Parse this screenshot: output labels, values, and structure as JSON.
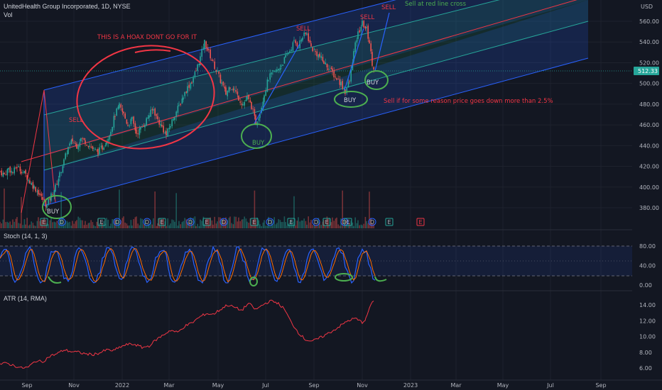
{
  "header": {
    "symbol_line": "UnitedHealth Group Incorporated, 1D, NYSE",
    "vol_label": "Vol"
  },
  "price_axis": {
    "currency": "USD",
    "ticks": [
      "560.00",
      "540.00",
      "520.00",
      "500.00",
      "480.00",
      "460.00",
      "440.00",
      "420.00",
      "400.00",
      "380.00"
    ],
    "last_price": "512.33"
  },
  "stoch": {
    "label": "Stoch (14, 1, 3)",
    "ticks": [
      "80.00",
      "40.00",
      "0.00"
    ]
  },
  "atr": {
    "label": "ATR (14, RMA)",
    "ticks": [
      "14.00",
      "12.00",
      "10.00",
      "8.00",
      "6.00"
    ]
  },
  "time_axis": [
    "Sep",
    "Nov",
    "2022",
    "Mar",
    "May",
    "Jul",
    "Sep",
    "Nov",
    "2023",
    "Mar",
    "May",
    "Jul",
    "Sep"
  ],
  "annotations": {
    "hoax": "THIS IS A HOAX DONT GO FOR IT",
    "sell_1": "SELL",
    "sell_2": "SELL",
    "sell_3": "SELL",
    "sell_4": "SELL",
    "sell_red_line": "Sell at red line cross",
    "buy_1": "BUY",
    "buy_2": "BUY",
    "buy_3": "BUY",
    "buy_4": "BUY",
    "warning": "Sell if for some reason price goes down more than 2.5%"
  },
  "events": [
    "E",
    "D",
    "E",
    "D",
    "D",
    "E",
    "D",
    "E",
    "D",
    "E",
    "D",
    "E",
    "D",
    "E",
    "D",
    "E",
    "D",
    "E"
  ],
  "colors": {
    "background": "#131722",
    "up": "#26a69a",
    "down": "#ef5350",
    "channel_blue": "#2962ff",
    "channel_green": "#1e8a5e",
    "annotation_red": "#f23645",
    "annotation_green": "#4caf50",
    "stoch_k": "#2962ff",
    "stoch_d": "#ff6d00",
    "atr_line": "#f23645"
  },
  "chart_data": {
    "type": "candlestick",
    "price_series_close": [
      [
        0,
        415
      ],
      [
        6,
        412
      ],
      [
        12,
        418
      ],
      [
        18,
        414
      ],
      [
        24,
        420
      ],
      [
        30,
        416
      ],
      [
        36,
        412
      ],
      [
        42,
        405
      ],
      [
        48,
        400
      ],
      [
        54,
        395
      ],
      [
        60,
        388
      ],
      [
        66,
        382
      ],
      [
        72,
        392
      ],
      [
        78,
        400
      ],
      [
        84,
        412
      ],
      [
        90,
        425
      ],
      [
        96,
        438
      ],
      [
        102,
        445
      ],
      [
        108,
        440
      ],
      [
        114,
        447
      ],
      [
        120,
        444
      ],
      [
        126,
        440
      ],
      [
        132,
        436
      ],
      [
        138,
        434
      ],
      [
        144,
        438
      ],
      [
        150,
        445
      ],
      [
        156,
        455
      ],
      [
        162,
        470
      ],
      [
        168,
        478
      ],
      [
        174,
        470
      ],
      [
        180,
        460
      ],
      [
        186,
        465
      ],
      [
        192,
        452
      ],
      [
        198,
        456
      ],
      [
        204,
        462
      ],
      [
        210,
        470
      ],
      [
        216,
        475
      ],
      [
        222,
        465
      ],
      [
        228,
        458
      ],
      [
        234,
        450
      ],
      [
        240,
        460
      ],
      [
        246,
        470
      ],
      [
        252,
        478
      ],
      [
        258,
        488
      ],
      [
        264,
        496
      ],
      [
        270,
        502
      ],
      [
        276,
        512
      ],
      [
        282,
        525
      ],
      [
        288,
        540
      ],
      [
        294,
        530
      ],
      [
        300,
        520
      ],
      [
        306,
        510
      ],
      [
        312,
        500
      ],
      [
        318,
        490
      ],
      [
        324,
        498
      ],
      [
        330,
        494
      ],
      [
        336,
        486
      ],
      [
        342,
        480
      ],
      [
        348,
        486
      ],
      [
        354,
        478
      ],
      [
        360,
        462
      ],
      [
        366,
        472
      ],
      [
        372,
        490
      ],
      [
        378,
        505
      ],
      [
        384,
        510
      ],
      [
        390,
        512
      ],
      [
        396,
        518
      ],
      [
        402,
        525
      ],
      [
        408,
        532
      ],
      [
        414,
        540
      ],
      [
        420,
        537
      ],
      [
        426,
        545
      ],
      [
        432,
        548
      ],
      [
        438,
        535
      ],
      [
        444,
        530
      ],
      [
        450,
        526
      ],
      [
        456,
        520
      ],
      [
        462,
        516
      ],
      [
        468,
        510
      ],
      [
        474,
        505
      ],
      [
        480,
        500
      ],
      [
        486,
        492
      ],
      [
        492,
        502
      ],
      [
        498,
        530
      ],
      [
        504,
        548
      ],
      [
        510,
        558
      ],
      [
        516,
        552
      ],
      [
        520,
        540
      ],
      [
        524,
        520
      ],
      [
        528,
        512
      ]
    ],
    "stoch_k_range": [
      0,
      100
    ],
    "stoch_bands": [
      20,
      50,
      80
    ],
    "atr_series": [
      [
        0,
        6.5
      ],
      [
        10,
        6.6
      ],
      [
        20,
        6.3
      ],
      [
        30,
        6.0
      ],
      [
        40,
        6.1
      ],
      [
        50,
        6.9
      ],
      [
        60,
        6.8
      ],
      [
        70,
        7.5
      ],
      [
        80,
        7.8
      ],
      [
        90,
        8.3
      ],
      [
        100,
        8.1
      ],
      [
        110,
        8.0
      ],
      [
        120,
        7.8
      ],
      [
        130,
        7.7
      ],
      [
        140,
        7.9
      ],
      [
        150,
        8.3
      ],
      [
        160,
        8.2
      ],
      [
        170,
        8.7
      ],
      [
        180,
        9.0
      ],
      [
        190,
        9.0
      ],
      [
        200,
        8.6
      ],
      [
        210,
        8.8
      ],
      [
        220,
        9.6
      ],
      [
        230,
        10.2
      ],
      [
        240,
        10.8
      ],
      [
        250,
        10.5
      ],
      [
        260,
        11.3
      ],
      [
        270,
        11.7
      ],
      [
        280,
        12.4
      ],
      [
        290,
        12.9
      ],
      [
        300,
        12.8
      ],
      [
        310,
        13.4
      ],
      [
        320,
        14.0
      ],
      [
        330,
        13.7
      ],
      [
        340,
        13.3
      ],
      [
        350,
        14.2
      ],
      [
        360,
        13.4
      ],
      [
        370,
        14.0
      ],
      [
        380,
        14.5
      ],
      [
        390,
        14.3
      ],
      [
        400,
        13.5
      ],
      [
        410,
        11.8
      ],
      [
        420,
        10.5
      ],
      [
        430,
        9.6
      ],
      [
        440,
        9.4
      ],
      [
        450,
        9.8
      ],
      [
        460,
        10.3
      ],
      [
        470,
        10.8
      ],
      [
        480,
        11.4
      ],
      [
        490,
        12.0
      ],
      [
        500,
        12.3
      ],
      [
        510,
        11.8
      ],
      [
        515,
        12.2
      ],
      [
        520,
        13.6
      ],
      [
        526,
        14.5
      ]
    ]
  }
}
